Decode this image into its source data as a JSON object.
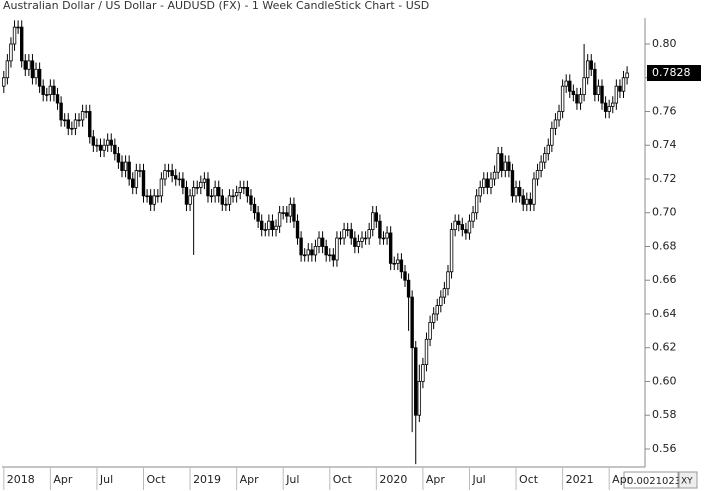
{
  "chart_data": {
    "type": "candlestick",
    "title": "Australian Dollar / US Dollar - AUDUSD (FX) - 1 Week CandleStick Chart - USD",
    "x": [
      0,
      1,
      2,
      3,
      4,
      5,
      6,
      7,
      8,
      9,
      10,
      11,
      12,
      13,
      14,
      15,
      16,
      17,
      18,
      19,
      20,
      21,
      22,
      23,
      24,
      25,
      26,
      27,
      28,
      29,
      30,
      31,
      32,
      33,
      34,
      35,
      36,
      37,
      38,
      39,
      40,
      41,
      42,
      43,
      44,
      45,
      46,
      47,
      48,
      49,
      50,
      51,
      52,
      53,
      54,
      55,
      56,
      57,
      58,
      59,
      60,
      61,
      62,
      63,
      64,
      65,
      66,
      67,
      68,
      69,
      70,
      71,
      72,
      73,
      74,
      75,
      76,
      77,
      78,
      79,
      80,
      81,
      82,
      83,
      84,
      85,
      86,
      87,
      88,
      89,
      90,
      91,
      92,
      93,
      94,
      95,
      96,
      97,
      98,
      99,
      100,
      101,
      102,
      103,
      104,
      105,
      106,
      107,
      108,
      109,
      110,
      111,
      112,
      113,
      114,
      115,
      116,
      117,
      118,
      119,
      120,
      121,
      122,
      123,
      124,
      125,
      126,
      127,
      128,
      129,
      130,
      131,
      132,
      133,
      134,
      135,
      136,
      137,
      138,
      139,
      140,
      141,
      142,
      143,
      144,
      145,
      146,
      147,
      148,
      149,
      150,
      151,
      152,
      153,
      154,
      155,
      156,
      157,
      158,
      159,
      160,
      161,
      162,
      163,
      164,
      165,
      166,
      167,
      168,
      169,
      170,
      171,
      172,
      173,
      174
    ],
    "open": [
      0.775,
      0.78,
      0.79,
      0.8,
      0.81,
      0.81,
      0.79,
      0.785,
      0.79,
      0.78,
      0.785,
      0.775,
      0.77,
      0.77,
      0.775,
      0.77,
      0.765,
      0.755,
      0.755,
      0.75,
      0.75,
      0.755,
      0.755,
      0.76,
      0.76,
      0.745,
      0.74,
      0.74,
      0.737,
      0.74,
      0.743,
      0.74,
      0.735,
      0.73,
      0.725,
      0.73,
      0.72,
      0.715,
      0.725,
      0.725,
      0.71,
      0.71,
      0.705,
      0.71,
      0.71,
      0.72,
      0.725,
      0.725,
      0.722,
      0.72,
      0.72,
      0.715,
      0.705,
      0.71,
      0.715,
      0.715,
      0.718,
      0.72,
      0.71,
      0.71,
      0.715,
      0.71,
      0.705,
      0.705,
      0.71,
      0.71,
      0.712,
      0.715,
      0.715,
      0.71,
      0.705,
      0.7,
      0.695,
      0.69,
      0.69,
      0.695,
      0.69,
      0.692,
      0.7,
      0.7,
      0.698,
      0.705,
      0.695,
      0.685,
      0.675,
      0.675,
      0.678,
      0.675,
      0.68,
      0.685,
      0.68,
      0.675,
      0.675,
      0.672,
      0.685,
      0.685,
      0.69,
      0.69,
      0.685,
      0.68,
      0.683,
      0.685,
      0.685,
      0.69,
      0.7,
      0.695,
      0.685,
      0.685,
      0.688,
      0.67,
      0.67,
      0.672,
      0.665,
      0.66,
      0.65,
      0.62,
      0.58,
      0.6,
      0.61,
      0.625,
      0.635,
      0.64,
      0.645,
      0.65,
      0.655,
      0.665,
      0.69,
      0.695,
      0.693,
      0.69,
      0.688,
      0.695,
      0.7,
      0.71,
      0.715,
      0.72,
      0.715,
      0.72,
      0.724,
      0.735,
      0.725,
      0.73,
      0.725,
      0.71,
      0.715,
      0.71,
      0.705,
      0.708,
      0.705,
      0.72,
      0.725,
      0.73,
      0.735,
      0.74,
      0.75,
      0.755,
      0.76,
      0.775,
      0.778,
      0.772,
      0.77,
      0.765,
      0.77,
      0.78,
      0.79,
      0.785,
      0.77,
      0.775,
      0.765,
      0.76,
      0.763,
      0.765,
      0.775,
      0.772,
      0.78
    ],
    "high": [
      0.784,
      0.794,
      0.804,
      0.814,
      0.814,
      0.814,
      0.794,
      0.794,
      0.794,
      0.789,
      0.789,
      0.779,
      0.774,
      0.779,
      0.779,
      0.774,
      0.769,
      0.759,
      0.759,
      0.754,
      0.759,
      0.759,
      0.764,
      0.764,
      0.764,
      0.749,
      0.744,
      0.744,
      0.744,
      0.747,
      0.747,
      0.744,
      0.739,
      0.734,
      0.734,
      0.734,
      0.724,
      0.729,
      0.729,
      0.729,
      0.714,
      0.714,
      0.714,
      0.714,
      0.724,
      0.729,
      0.729,
      0.729,
      0.726,
      0.724,
      0.724,
      0.719,
      0.714,
      0.719,
      0.719,
      0.722,
      0.724,
      0.724,
      0.714,
      0.719,
      0.719,
      0.714,
      0.709,
      0.714,
      0.714,
      0.716,
      0.719,
      0.719,
      0.719,
      0.714,
      0.709,
      0.704,
      0.699,
      0.694,
      0.699,
      0.699,
      0.696,
      0.704,
      0.704,
      0.704,
      0.709,
      0.709,
      0.699,
      0.689,
      0.679,
      0.682,
      0.682,
      0.684,
      0.689,
      0.689,
      0.684,
      0.679,
      0.679,
      0.689,
      0.689,
      0.694,
      0.694,
      0.694,
      0.689,
      0.687,
      0.689,
      0.689,
      0.694,
      0.704,
      0.704,
      0.699,
      0.689,
      0.692,
      0.692,
      0.674,
      0.676,
      0.676,
      0.669,
      0.664,
      0.654,
      0.624,
      0.61,
      0.614,
      0.629,
      0.639,
      0.644,
      0.649,
      0.654,
      0.659,
      0.669,
      0.694,
      0.699,
      0.699,
      0.697,
      0.694,
      0.699,
      0.704,
      0.714,
      0.719,
      0.724,
      0.724,
      0.724,
      0.728,
      0.739,
      0.739,
      0.734,
      0.734,
      0.729,
      0.719,
      0.719,
      0.714,
      0.712,
      0.712,
      0.724,
      0.729,
      0.734,
      0.739,
      0.744,
      0.754,
      0.759,
      0.764,
      0.779,
      0.782,
      0.782,
      0.776,
      0.774,
      0.774,
      0.8,
      0.794,
      0.794,
      0.789,
      0.779,
      0.779,
      0.769,
      0.767,
      0.769,
      0.779,
      0.779,
      0.784,
      0.7868
    ],
    "low": [
      0.771,
      0.776,
      0.786,
      0.796,
      0.806,
      0.786,
      0.781,
      0.781,
      0.776,
      0.776,
      0.771,
      0.766,
      0.766,
      0.766,
      0.766,
      0.761,
      0.751,
      0.751,
      0.746,
      0.746,
      0.746,
      0.751,
      0.751,
      0.756,
      0.741,
      0.736,
      0.736,
      0.733,
      0.733,
      0.736,
      0.736,
      0.731,
      0.726,
      0.721,
      0.721,
      0.716,
      0.711,
      0.711,
      0.721,
      0.706,
      0.706,
      0.701,
      0.701,
      0.706,
      0.706,
      0.716,
      0.721,
      0.718,
      0.716,
      0.716,
      0.711,
      0.701,
      0.701,
      0.675,
      0.711,
      0.711,
      0.714,
      0.706,
      0.706,
      0.706,
      0.706,
      0.701,
      0.701,
      0.701,
      0.706,
      0.706,
      0.708,
      0.711,
      0.706,
      0.701,
      0.696,
      0.691,
      0.686,
      0.686,
      0.686,
      0.686,
      0.686,
      0.688,
      0.696,
      0.694,
      0.694,
      0.691,
      0.681,
      0.671,
      0.671,
      0.671,
      0.671,
      0.671,
      0.676,
      0.676,
      0.671,
      0.671,
      0.668,
      0.668,
      0.681,
      0.681,
      0.686,
      0.681,
      0.676,
      0.676,
      0.679,
      0.681,
      0.681,
      0.686,
      0.691,
      0.681,
      0.681,
      0.681,
      0.666,
      0.666,
      0.666,
      0.661,
      0.656,
      0.63,
      0.57,
      0.551,
      0.576,
      0.596,
      0.606,
      0.621,
      0.631,
      0.636,
      0.641,
      0.646,
      0.651,
      0.661,
      0.686,
      0.689,
      0.686,
      0.684,
      0.684,
      0.691,
      0.696,
      0.706,
      0.711,
      0.711,
      0.711,
      0.716,
      0.72,
      0.721,
      0.721,
      0.721,
      0.706,
      0.706,
      0.706,
      0.701,
      0.701,
      0.701,
      0.701,
      0.716,
      0.721,
      0.726,
      0.731,
      0.736,
      0.746,
      0.751,
      0.756,
      0.771,
      0.768,
      0.766,
      0.761,
      0.761,
      0.766,
      0.776,
      0.781,
      0.766,
      0.766,
      0.761,
      0.756,
      0.756,
      0.759,
      0.761,
      0.768,
      0.768,
      0.776
    ],
    "close": [
      0.78,
      0.79,
      0.8,
      0.81,
      0.81,
      0.79,
      0.785,
      0.79,
      0.78,
      0.785,
      0.775,
      0.77,
      0.77,
      0.775,
      0.77,
      0.765,
      0.755,
      0.755,
      0.75,
      0.75,
      0.755,
      0.755,
      0.76,
      0.76,
      0.745,
      0.74,
      0.74,
      0.737,
      0.74,
      0.743,
      0.74,
      0.735,
      0.73,
      0.725,
      0.73,
      0.72,
      0.715,
      0.725,
      0.725,
      0.71,
      0.71,
      0.705,
      0.71,
      0.71,
      0.72,
      0.725,
      0.725,
      0.722,
      0.72,
      0.72,
      0.715,
      0.705,
      0.71,
      0.715,
      0.715,
      0.718,
      0.72,
      0.71,
      0.71,
      0.715,
      0.71,
      0.705,
      0.705,
      0.71,
      0.71,
      0.712,
      0.715,
      0.715,
      0.71,
      0.705,
      0.7,
      0.695,
      0.69,
      0.69,
      0.695,
      0.69,
      0.692,
      0.7,
      0.7,
      0.698,
      0.705,
      0.695,
      0.685,
      0.675,
      0.675,
      0.678,
      0.675,
      0.68,
      0.685,
      0.68,
      0.675,
      0.675,
      0.672,
      0.685,
      0.685,
      0.69,
      0.69,
      0.685,
      0.68,
      0.683,
      0.685,
      0.685,
      0.69,
      0.7,
      0.695,
      0.685,
      0.685,
      0.688,
      0.67,
      0.67,
      0.672,
      0.665,
      0.66,
      0.65,
      0.62,
      0.58,
      0.6,
      0.61,
      0.625,
      0.635,
      0.64,
      0.645,
      0.65,
      0.655,
      0.665,
      0.69,
      0.695,
      0.693,
      0.69,
      0.688,
      0.695,
      0.7,
      0.71,
      0.715,
      0.72,
      0.715,
      0.72,
      0.724,
      0.735,
      0.725,
      0.73,
      0.725,
      0.71,
      0.715,
      0.71,
      0.705,
      0.708,
      0.705,
      0.72,
      0.725,
      0.73,
      0.735,
      0.74,
      0.75,
      0.755,
      0.76,
      0.775,
      0.778,
      0.772,
      0.77,
      0.765,
      0.77,
      0.78,
      0.79,
      0.785,
      0.77,
      0.775,
      0.765,
      0.76,
      0.763,
      0.765,
      0.775,
      0.772,
      0.78,
      0.7828
    ],
    "xlim": [
      -0.5,
      179
    ],
    "xticks": [
      {
        "value": 0,
        "label": "2018"
      },
      {
        "value": 13,
        "label": "Apr"
      },
      {
        "value": 26,
        "label": "Jul"
      },
      {
        "value": 39,
        "label": "Oct"
      },
      {
        "value": 52,
        "label": "2019"
      },
      {
        "value": 65,
        "label": "Apr"
      },
      {
        "value": 78,
        "label": "Jul"
      },
      {
        "value": 91,
        "label": "Oct"
      },
      {
        "value": 104,
        "label": "2020"
      },
      {
        "value": 117,
        "label": "Apr"
      },
      {
        "value": 130,
        "label": "Jul"
      },
      {
        "value": 143,
        "label": "Oct"
      },
      {
        "value": 156,
        "label": "2021"
      },
      {
        "value": 169,
        "label": "Apr"
      }
    ],
    "ylim": [
      0.5505,
      0.8154
    ],
    "yticks": [
      0.56,
      0.58,
      {
        "value": 0.6,
        "label": "0.60"
      },
      0.62,
      0.64,
      0.66,
      0.68,
      {
        "value": 0.7,
        "label": "0.70"
      },
      0.72,
      0.74,
      0.76,
      0.78,
      {
        "value": 0.8,
        "label": "0.80"
      }
    ],
    "last_price_label": {
      "value": 0.7828,
      "label": "0.7828"
    },
    "cursor_readout": "0.0021023",
    "cursor_mode": "XY",
    "color": "#000000"
  }
}
